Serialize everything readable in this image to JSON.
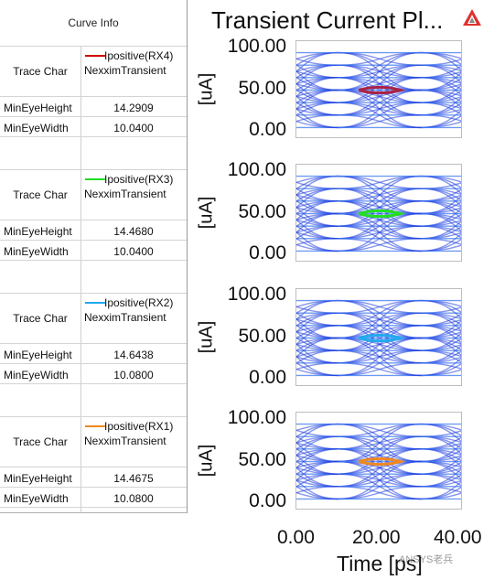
{
  "curve_info": {
    "header": "Curve Info",
    "trace_char_label": "Trace Char",
    "curves": [
      {
        "name": "Ipositive(RX4)",
        "source": "NexximTransient",
        "color": "#cc0000",
        "metrics": [
          {
            "label": "MinEyeHeight",
            "value": "14.2909"
          },
          {
            "label": "MinEyeWidth",
            "value": "10.0400"
          }
        ]
      },
      {
        "name": "Ipositive(RX3)",
        "source": "NexximTransient",
        "color": "#22dd22",
        "metrics": [
          {
            "label": "MinEyeHeight",
            "value": "14.4680"
          },
          {
            "label": "MinEyeWidth",
            "value": "10.0400"
          }
        ]
      },
      {
        "name": "Ipositive(RX2)",
        "source": "NexximTransient",
        "color": "#22aaee",
        "metrics": [
          {
            "label": "MinEyeHeight",
            "value": "14.6438"
          },
          {
            "label": "MinEyeWidth",
            "value": "10.0800"
          }
        ]
      },
      {
        "name": "Ipositive(RX1)",
        "source": "NexximTransient",
        "color": "#ee8822",
        "metrics": [
          {
            "label": "MinEyeHeight",
            "value": "14.4675"
          },
          {
            "label": "MinEyeWidth",
            "value": "10.0800"
          }
        ]
      }
    ]
  },
  "chart_data": {
    "type": "line",
    "title": "Transient Current Pl...",
    "xlabel": "Time [ps]",
    "ylabel": "[uA]",
    "xlim": [
      0,
      40
    ],
    "ylim": [
      0,
      100
    ],
    "xticks": [
      "0.00",
      "20.00",
      "40.00"
    ],
    "yticks": [
      "100.00",
      "50.00",
      "0.00"
    ],
    "panels": [
      {
        "series": "Ipositive(RX4)",
        "inner_eye_color": "#aa2244"
      },
      {
        "series": "Ipositive(RX3)",
        "inner_eye_color": "#22dd22"
      },
      {
        "series": "Ipositive(RX2)",
        "inner_eye_color": "#22aaee"
      },
      {
        "series": "Ipositive(RX1)",
        "inner_eye_color": "#ee8822"
      }
    ],
    "trace_color": "#1f3fe0"
  },
  "watermark": "ANSYS老兵"
}
